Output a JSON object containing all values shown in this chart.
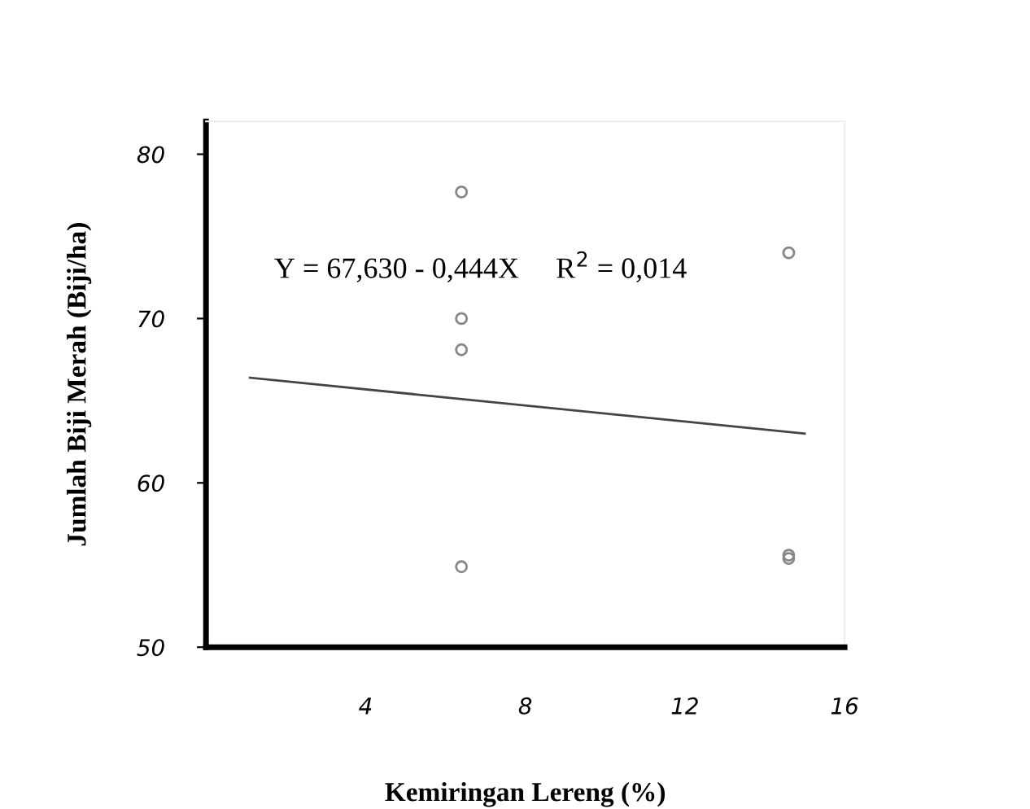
{
  "chart_data": {
    "type": "scatter",
    "xlabel": "Kemiringan Lereng (%)",
    "ylabel": "Jumlah Biji Merah (Biji/ha)",
    "xlim": [
      0,
      16
    ],
    "xticks": [
      4,
      8,
      12,
      16
    ],
    "ylim": [
      50,
      82
    ],
    "yticks": [
      50,
      60,
      70,
      80
    ],
    "grid": false,
    "legend": false,
    "marker": "circle",
    "series": [
      {
        "color": "#888888",
        "x": [
          6.4,
          6.4,
          6.4,
          6.4,
          14.6,
          14.6,
          14.6
        ],
        "values": [
          77.7,
          70.0,
          68.1,
          54.9,
          74.0,
          55.6,
          55.4
        ]
      },
      {
        "type": "line",
        "color": "#444444",
        "x": [
          1.1,
          15.0
        ],
        "values": [
          66.4,
          63.0
        ],
        "marker": "none"
      }
    ],
    "annotations": [
      "Y = 67,630 - 0,444X     R$^{2}$ = 0,014"
    ]
  }
}
